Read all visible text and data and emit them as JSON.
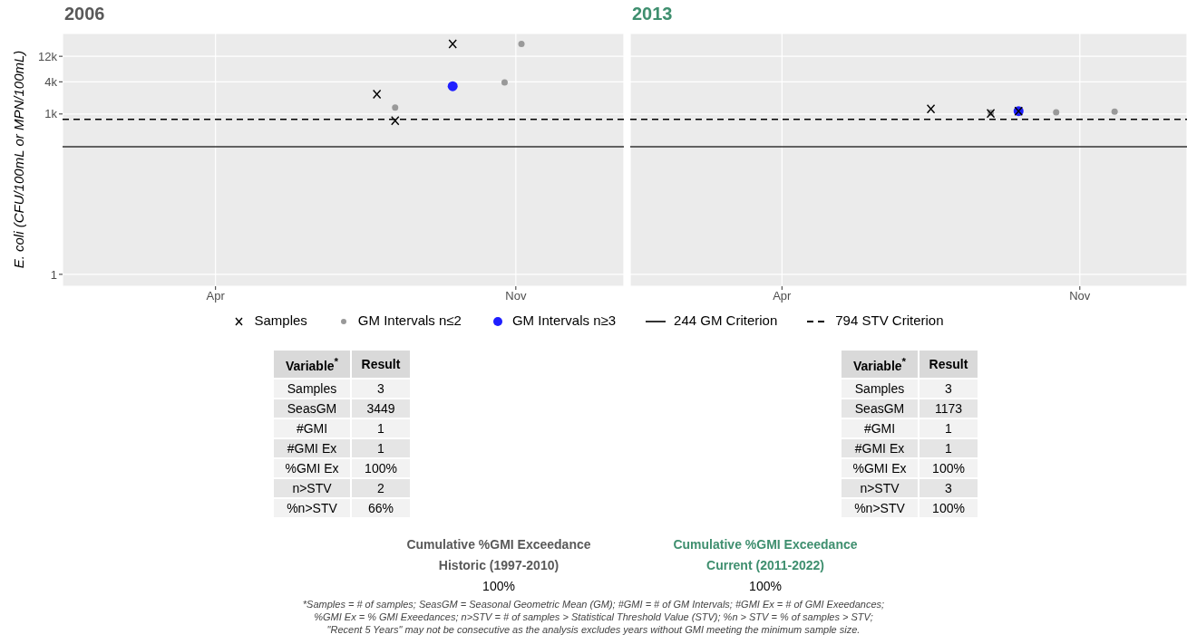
{
  "chart_data": [
    {
      "type": "scatter",
      "title": "2006",
      "ylabel": "E. coli (CFU/100mL or MPN/100mL)",
      "xlim": [
        "2005-12-13",
        "2007-01-17"
      ],
      "xticks": [
        {
          "value": "2006-04-01",
          "label": "Apr"
        },
        {
          "value": "2006-11-01",
          "label": "Nov"
        }
      ],
      "ylim": [
        0.6,
        32000
      ],
      "yticks": [
        1,
        {
          "value": 1000,
          "label": "1k"
        },
        {
          "value": 4000,
          "label": "4k"
        },
        {
          "value": 12000,
          "label": "12k"
        }
      ],
      "log": true,
      "grid": true,
      "legend": "bottom",
      "series": [
        {
          "name": "Samples",
          "marker": "cross",
          "color": "#000000",
          "x": [
            "2006-07-25",
            "2006-08-07",
            "2006-09-17"
          ],
          "values": [
            2350,
            750,
            20400
          ]
        },
        {
          "name": "GM Intervals n≤2",
          "marker": "circle",
          "color": "#999999",
          "x": [
            "2006-08-07",
            "2006-10-24",
            "2006-11-05"
          ],
          "values": [
            1320,
            3900,
            20400
          ]
        },
        {
          "name": "GM Intervals n≥3",
          "marker": "circle",
          "color": "#1f1fff",
          "x": [
            "2006-09-17"
          ],
          "values": [
            3300
          ]
        }
      ],
      "ref_lines": [
        {
          "axis": "y",
          "value": 244,
          "label": "244 GM Criterion",
          "line_style": "solid",
          "color": "#333333"
        },
        {
          "axis": "y",
          "value": 794,
          "label": "794 STV Criterion",
          "line_style": "dashed",
          "color": "#000000"
        }
      ],
      "annotations": [
        "*Samples = # of samples; SeasGM = Seasonal Geometric Mean (GM); #GMI = # of GM Intervals; #GMI Ex = # of GMI Exeedances;",
        "%GMI Ex = % GMI Exeedances; n>STV = # of samples > Statistical Threshold Value (STV); %n > STV = % of samples > STV;",
        "\"Recent 5 Years\" may not be consecutive as the analysis excludes years without GMI meeting the minimum sample size."
      ]
    },
    {
      "type": "scatter",
      "title": "2013",
      "xlim": [
        "2012-12-13",
        "2014-01-17"
      ],
      "xticks": [
        {
          "value": "2013-04-01",
          "label": "Apr"
        },
        {
          "value": "2013-11-01",
          "label": "Nov"
        }
      ],
      "ylim": [
        0.6,
        32000
      ],
      "yticks": [
        1,
        1000,
        4000,
        12000
      ],
      "log": true,
      "grid": true,
      "tick_labels": "x",
      "series": [
        {
          "marker": "circle",
          "color": "#999999",
          "x": [
            "2013-08-29",
            "2013-10-15",
            "2013-11-26"
          ],
          "values": [
            1050,
            1070,
            1110
          ]
        },
        {
          "marker": "circle",
          "color": "#1f1fff",
          "x": [
            "2013-09-18"
          ],
          "values": [
            1130
          ]
        },
        {
          "marker": "cross",
          "color": "#000000",
          "x": [
            "2013-07-17",
            "2013-08-29",
            "2013-09-18"
          ],
          "values": [
            1240,
            1020,
            1130
          ]
        }
      ],
      "ref_lines": [
        {
          "axis": "y",
          "value": 244,
          "line_style": "solid",
          "color": "#333333"
        },
        {
          "axis": "y",
          "value": 794,
          "line_style": "dashed",
          "color": "#000000"
        }
      ]
    },
    {
      "type": "other",
      "annotations": [
        "Variable$^{*}$",
        "Result"
      ],
      "categories": [
        "Samples",
        "SeasGM",
        "#GMI",
        "#GMI Ex",
        "%GMI Ex",
        "n>STV",
        "%n>STV"
      ],
      "value_labels": [
        "3",
        "3449",
        "1",
        "1",
        "100%",
        "2",
        "66%"
      ]
    },
    {
      "type": "other",
      "annotations": [
        "Variable$^{*}$",
        "Result"
      ],
      "categories": [
        "Samples",
        "SeasGM",
        "#GMI",
        "#GMI Ex",
        "%GMI Ex",
        "n>STV",
        "%n>STV"
      ],
      "value_labels": [
        "3",
        "1173",
        "1",
        "1",
        "100%",
        "3",
        "100%"
      ]
    },
    {
      "type": "other",
      "title": "Cumulative %GMI Exceedance",
      "subtitle": "Historic (1997-2010)",
      "annotations": [
        "100%"
      ]
    },
    {
      "type": "other",
      "title": "Cumulative %GMI Exceedance",
      "subtitle": "Current (2011-2022)",
      "annotations": [
        "100%"
      ]
    }
  ]
}
